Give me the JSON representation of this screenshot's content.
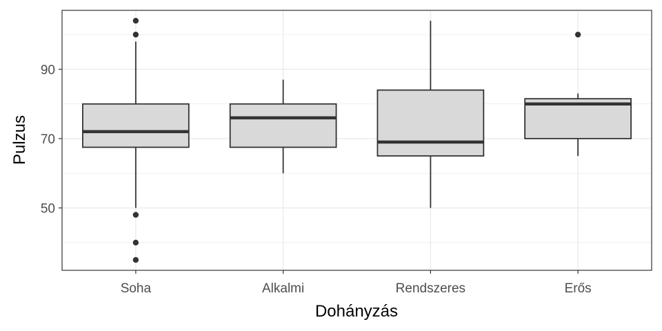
{
  "chart_data": {
    "type": "boxplot",
    "title": "",
    "xlabel": "Dohányzás",
    "ylabel": "Pulzus",
    "ylim": [
      32,
      107
    ],
    "y_ticks": [
      50,
      70,
      90
    ],
    "y_minor_ticks": [
      40,
      60,
      80,
      100
    ],
    "grid": true,
    "categories": [
      "Soha",
      "Alkalmi",
      "Rendszeres",
      "Erős"
    ],
    "boxes": [
      {
        "category": "Soha",
        "whisker_low": 50,
        "q1": 67.5,
        "median": 72,
        "q3": 80,
        "whisker_high": 98,
        "outliers": [
          104,
          100,
          48,
          40,
          35
        ]
      },
      {
        "category": "Alkalmi",
        "whisker_low": 60,
        "q1": 67.5,
        "median": 76,
        "q3": 80,
        "whisker_high": 87,
        "outliers": []
      },
      {
        "category": "Rendszeres",
        "whisker_low": 50,
        "q1": 65,
        "median": 69,
        "q3": 84,
        "whisker_high": 104,
        "outliers": []
      },
      {
        "category": "Erős",
        "whisker_low": 65,
        "q1": 70,
        "median": 80,
        "q3": 81.5,
        "whisker_high": 83,
        "outliers": [
          100
        ]
      }
    ],
    "colors": {
      "box_fill": "#d9d9d9",
      "box_stroke": "#333333",
      "grid": "#ebebeb",
      "panel_border": "#333333"
    }
  }
}
